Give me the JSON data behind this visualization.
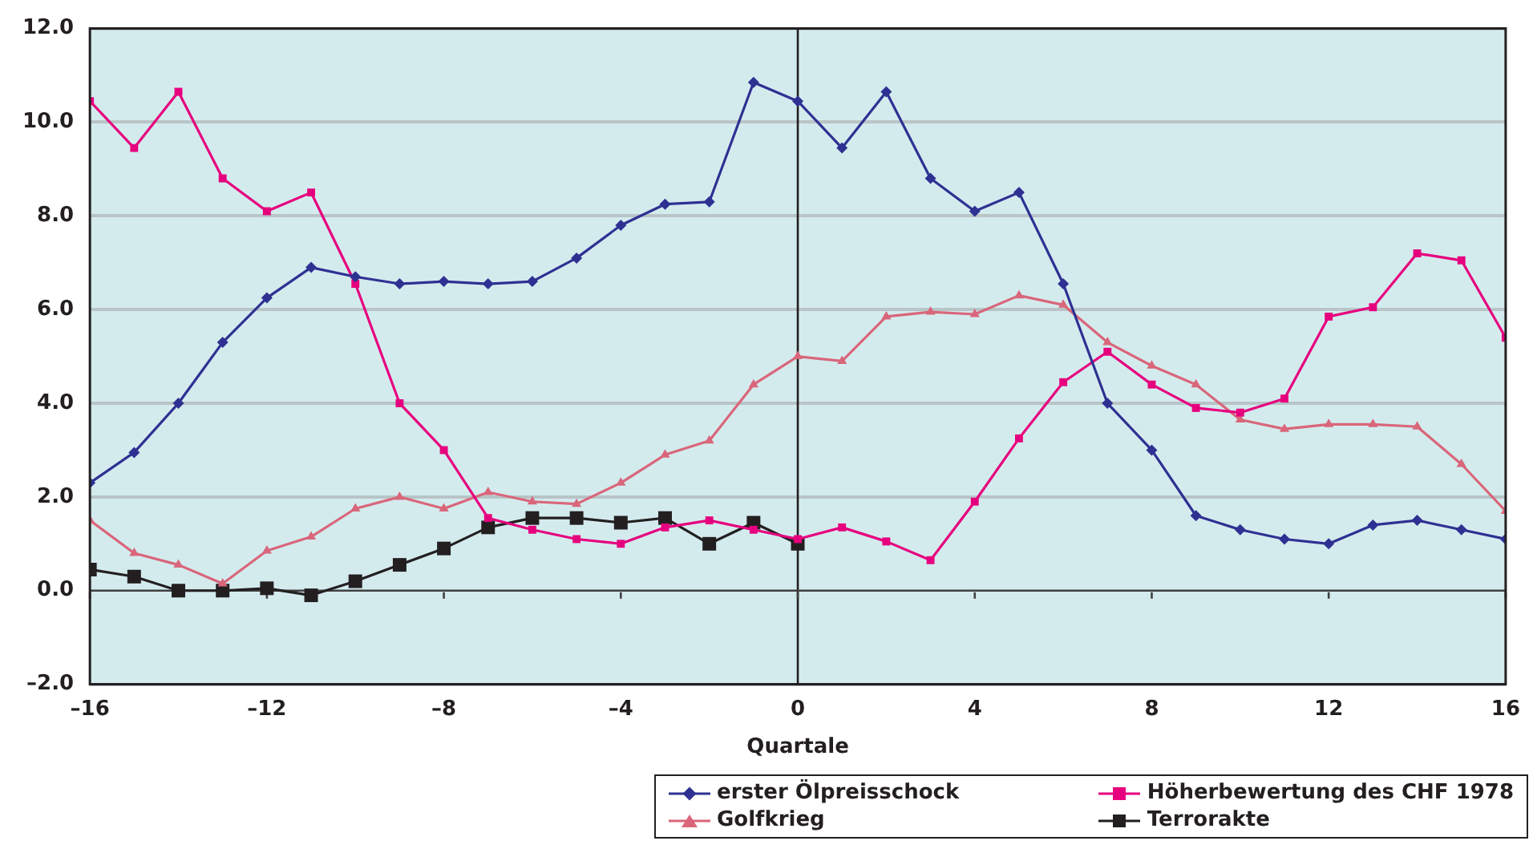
{
  "chart_data": {
    "type": "line",
    "xlabel": "Quartale",
    "x": [
      -16,
      -15,
      -14,
      -13,
      -12,
      -11,
      -10,
      -9,
      -8,
      -7,
      -6,
      -5,
      -4,
      -3,
      -2,
      -1,
      0,
      1,
      2,
      3,
      4,
      5,
      6,
      7,
      8,
      9,
      10,
      11,
      12,
      13,
      14,
      15,
      16
    ],
    "xlim": [
      -16,
      16
    ],
    "xticks": [
      {
        "value": -16,
        "label": "–16"
      },
      {
        "value": -12,
        "label": "–12"
      },
      {
        "value": -8,
        "label": "–8"
      },
      {
        "value": -4,
        "label": "–4"
      },
      0,
      4,
      8,
      12,
      16
    ],
    "ylim": [
      -2,
      12
    ],
    "yticks": [
      {
        "value": -2,
        "label": "–2.0"
      },
      {
        "value": 0,
        "label": "0.0"
      },
      {
        "value": 2,
        "label": "2.0"
      },
      {
        "value": 4,
        "label": "4.0"
      },
      {
        "value": 6,
        "label": "6.0"
      },
      {
        "value": 8,
        "label": "8.0"
      },
      {
        "value": 10,
        "label": "10.0"
      },
      {
        "value": 12,
        "label": "12.0"
      }
    ],
    "grid": "y",
    "legend": "bottom right",
    "line_style": "solid",
    "ref_lines": [
      {
        "axis": "x",
        "value": 0,
        "color": "#231f20"
      },
      {
        "axis": "y",
        "value": 0,
        "color": "#404040"
      }
    ],
    "series": [
      {
        "name": "erster Ölpreisschock",
        "color": "#2e3192",
        "marker": "diamond",
        "values": [
          2.3,
          2.95,
          4.0,
          5.3,
          6.25,
          6.9,
          6.7,
          6.55,
          6.6,
          6.55,
          6.6,
          7.1,
          7.8,
          8.25,
          8.3,
          10.85,
          10.45,
          9.45,
          10.65,
          8.8,
          8.1,
          8.5,
          6.55,
          4.0,
          3.0,
          1.6,
          1.3,
          1.1,
          1.0,
          1.4,
          1.5,
          1.3,
          1.1
        ]
      },
      {
        "name": "Höherbewertung des CHF 1978",
        "color": "#e6007e",
        "marker": "square",
        "values": [
          10.45,
          9.45,
          10.65,
          8.8,
          8.1,
          8.5,
          6.55,
          4.0,
          3.0,
          1.55,
          1.3,
          1.1,
          1.0,
          1.35,
          1.5,
          1.3,
          1.1,
          1.35,
          1.05,
          0.65,
          1.9,
          3.25,
          4.45,
          5.1,
          4.4,
          3.9,
          3.8,
          4.1,
          5.85,
          6.05,
          7.2,
          7.05,
          5.4
        ]
      },
      {
        "name": "Golfkrieg",
        "color": "#d9667a",
        "marker": "triangle",
        "values": [
          1.5,
          0.8,
          0.55,
          0.15,
          0.85,
          1.15,
          1.75,
          2.0,
          1.75,
          2.1,
          1.9,
          1.85,
          2.3,
          2.9,
          3.2,
          4.4,
          5.0,
          4.9,
          5.85,
          5.95,
          5.9,
          6.3,
          6.1,
          5.3,
          4.8,
          4.4,
          3.65,
          3.45,
          3.55,
          3.55,
          3.5,
          2.7,
          1.7
        ]
      },
      {
        "name": "Terrorakte",
        "color": "#231f20",
        "marker": "square",
        "values": [
          0.45,
          0.3,
          0.0,
          0.0,
          0.05,
          -0.1,
          0.2,
          0.55,
          0.9,
          1.35,
          1.55,
          1.55,
          1.45,
          1.55,
          1.0,
          1.45,
          1.0,
          null,
          null,
          null,
          null,
          null,
          null,
          null,
          null,
          null,
          null,
          null,
          null,
          null,
          null,
          null,
          null
        ]
      }
    ]
  }
}
